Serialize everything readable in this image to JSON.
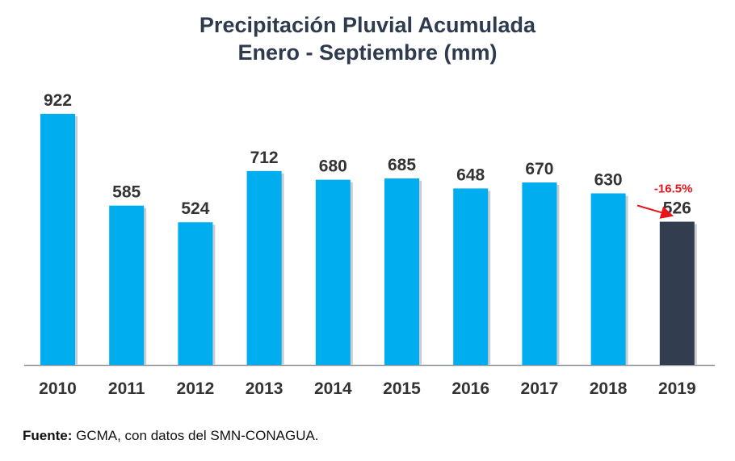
{
  "chart_data": {
    "type": "bar",
    "title": "Precipitación Pluvial Acumulada",
    "subtitle": "Enero - Septiembre (mm)",
    "categories": [
      "2010",
      "2011",
      "2012",
      "2013",
      "2014",
      "2015",
      "2016",
      "2017",
      "2018",
      "2019"
    ],
    "values": [
      922,
      585,
      524,
      712,
      680,
      685,
      648,
      670,
      630,
      526
    ],
    "ylim": [
      0,
      922
    ],
    "grid": false,
    "colors": {
      "bar": "#00AEEF",
      "highlight_bar": "#323E4F",
      "annotation": "#E8141C",
      "label": "#333333"
    },
    "highlight_index": 9,
    "annotations": [
      {
        "text": "-16.5%",
        "from_category": "2018",
        "to_category": "2019"
      }
    ]
  },
  "source": {
    "label": "Fuente:",
    "text": " GCMA, con datos del SMN-CONAGUA."
  }
}
